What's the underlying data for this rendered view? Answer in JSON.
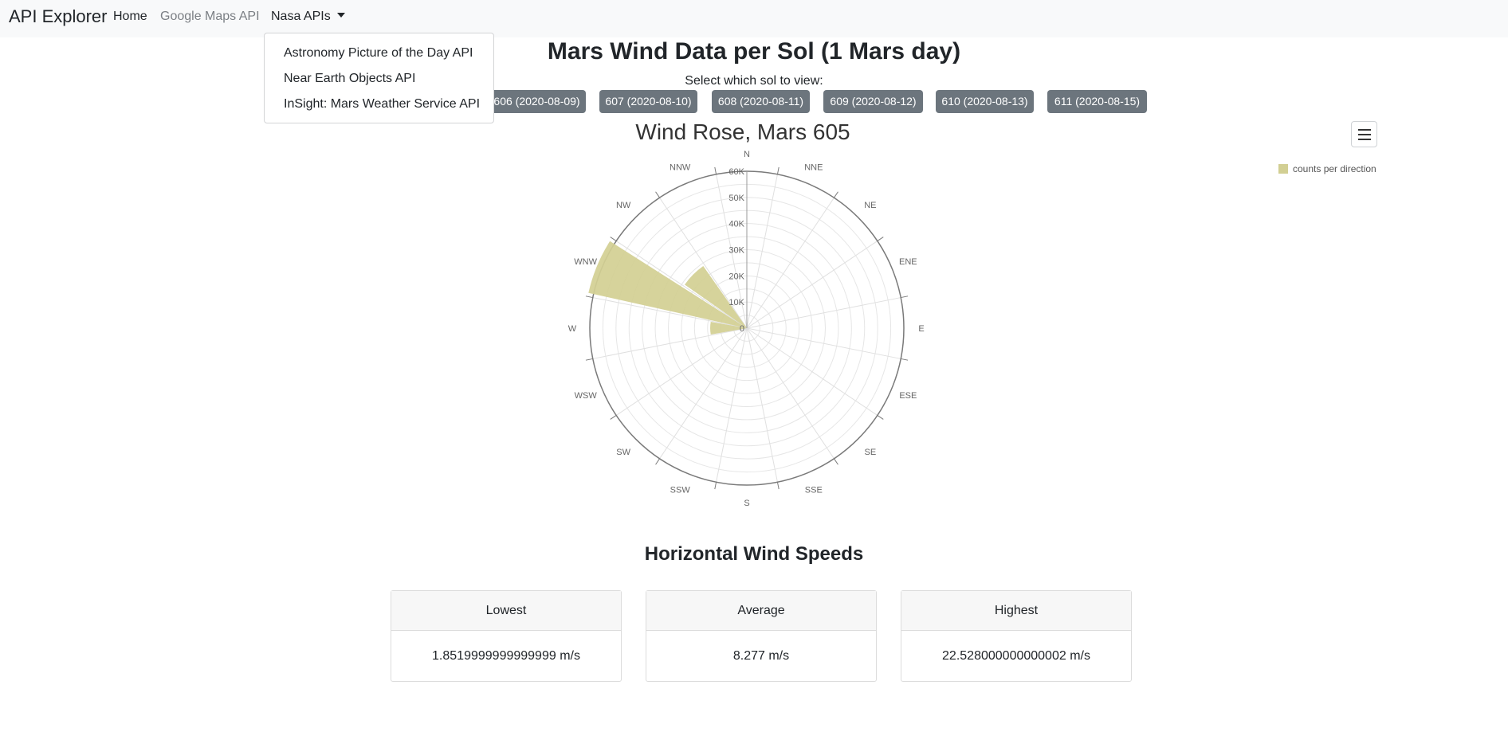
{
  "navbar": {
    "brand": "API Explorer",
    "links": {
      "home": "Home",
      "gmaps": "Google Maps API",
      "nasa": "Nasa APIs"
    }
  },
  "dropdown": {
    "items": [
      "Astronomy Picture of the Day API",
      "Near Earth Objects API",
      "InSight: Mars Weather Service API"
    ]
  },
  "page_title": "Mars Wind Data per Sol (1 Mars day)",
  "sol_prompt": "Select which sol to view:",
  "sol_buttons": [
    "606 (2020-08-09)",
    "607 (2020-08-10)",
    "608 (2020-08-11)",
    "609 (2020-08-12)",
    "610 (2020-08-13)",
    "611 (2020-08-15)"
  ],
  "chart_data": {
    "type": "polar-bar",
    "title": "Wind Rose, Mars 605",
    "directions": [
      "N",
      "NNE",
      "NE",
      "ENE",
      "E",
      "ESE",
      "SE",
      "SSE",
      "S",
      "SSW",
      "SW",
      "WSW",
      "W",
      "WNW",
      "NW",
      "NNW"
    ],
    "series": [
      {
        "name": "counts per direction",
        "color": "#d2cf93",
        "values": [
          0,
          0,
          0,
          0,
          0,
          0,
          0,
          0,
          0,
          0,
          0,
          0,
          14000,
          62000,
          29000,
          0
        ]
      }
    ],
    "radial_ticks": [
      "0",
      "10K",
      "20K",
      "30K",
      "40K",
      "50K",
      "60K"
    ],
    "ylim": [
      0,
      60000
    ],
    "legend": "top-right"
  },
  "wind_speeds": {
    "title": "Horizontal Wind Speeds",
    "cards": [
      {
        "label": "Lowest",
        "value": "1.8519999999999999 m/s"
      },
      {
        "label": "Average",
        "value": "8.277 m/s"
      },
      {
        "label": "Highest",
        "value": "22.528000000000002 m/s"
      }
    ]
  }
}
